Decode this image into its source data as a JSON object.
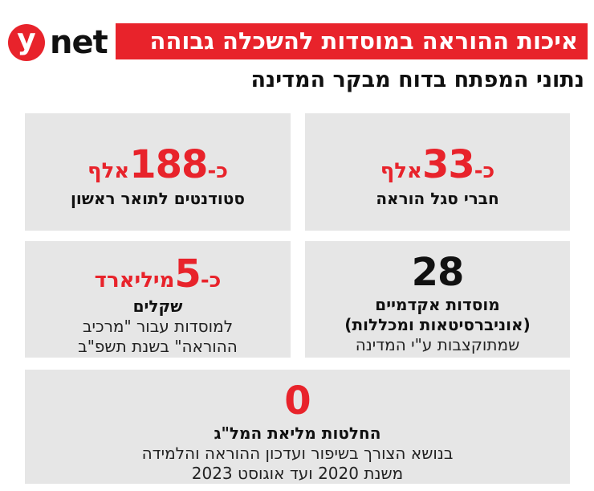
{
  "header": {
    "logo_mark": "y",
    "logo_word": "net",
    "title": "איכות ההוראה במוסדות להשכלה גבוהה",
    "subtitle": "נתוני המפתח בדוח מבקר המדינה"
  },
  "cards": [
    {
      "prefix": "כ-",
      "number": "33",
      "suffix": "אלף",
      "lines": [
        "חברי סגל הוראה"
      ]
    },
    {
      "prefix": "כ-",
      "number": "188",
      "suffix": "אלף",
      "lines": [
        "סטודנטים לתואר ראשון"
      ]
    },
    {
      "number": "28",
      "lines": [
        "מוסדות אקדמיים",
        "(אוניברסיטאות ומכללות)",
        "שמתוקצבות ע\"י המדינה"
      ]
    },
    {
      "prefix": "כ-",
      "number": "5",
      "suffix": "מיליארד",
      "lines": [
        "שקלים",
        "למוסדות עבור \"מרכיב",
        "ההוראה\" בשנת תשפ\"ב"
      ]
    },
    {
      "number": "0",
      "lines": [
        "החלטות מליאת המל\"ג",
        "בנושא הצורך בשיפור ועדכון ההוראה והלמידה",
        "משנת 2020 ועד אוגוסט 2023"
      ]
    }
  ],
  "colors": {
    "accent": "#e8232b",
    "card_bg": "#e6e6e6",
    "text": "#111111"
  }
}
